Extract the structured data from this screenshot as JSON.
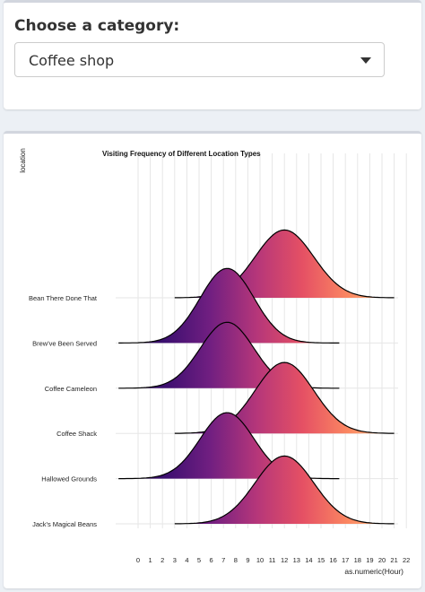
{
  "category_select": {
    "label": "Choose a category:",
    "selected": "Coffee shop"
  },
  "colors": {
    "palette": "magma",
    "gradient_stops": [
      "#1a0c3e",
      "#3c0f70",
      "#711f81",
      "#b5367a",
      "#e55064",
      "#fb8761",
      "#fec488"
    ]
  },
  "chart_data": {
    "type": "ridgeline",
    "title": "Visiting Frequency of Different Location Types",
    "xlabel": "as.numeric(Hour)",
    "ylabel": "location",
    "xlim": [
      0,
      22
    ],
    "xticks": [
      0,
      1,
      2,
      3,
      4,
      5,
      6,
      7,
      8,
      9,
      10,
      11,
      12,
      13,
      14,
      15,
      16,
      17,
      18,
      19,
      20,
      21,
      22
    ],
    "grid": true,
    "series": [
      {
        "name": "Bean There Done That",
        "curves": [
          {
            "mean": 12,
            "sd": 2.4,
            "height": 1.5,
            "xmin": 3,
            "xmax": 21
          }
        ]
      },
      {
        "name": "Brew've Been Served",
        "curves": [
          {
            "mean": 7.3,
            "sd": 2.2,
            "height": 1.65,
            "xmin": -1.6,
            "xmax": 16.5
          }
        ]
      },
      {
        "name": "Coffee Cameleon",
        "curves": [
          {
            "mean": 7.3,
            "sd": 2.2,
            "height": 1.46,
            "xmin": -1.6,
            "xmax": 16.5
          }
        ]
      },
      {
        "name": "Coffee Shack",
        "curves": [
          {
            "mean": 12,
            "sd": 2.4,
            "height": 1.57,
            "xmin": 3,
            "xmax": 21
          }
        ]
      },
      {
        "name": "Hallowed Grounds",
        "curves": [
          {
            "mean": 7.3,
            "sd": 2.2,
            "height": 1.46,
            "xmin": -1.6,
            "xmax": 16.5
          }
        ]
      },
      {
        "name": "Jack's Magical Beans",
        "curves": [
          {
            "mean": 12,
            "sd": 2.4,
            "height": 1.5,
            "xmin": 3,
            "xmax": 21
          }
        ]
      }
    ]
  }
}
